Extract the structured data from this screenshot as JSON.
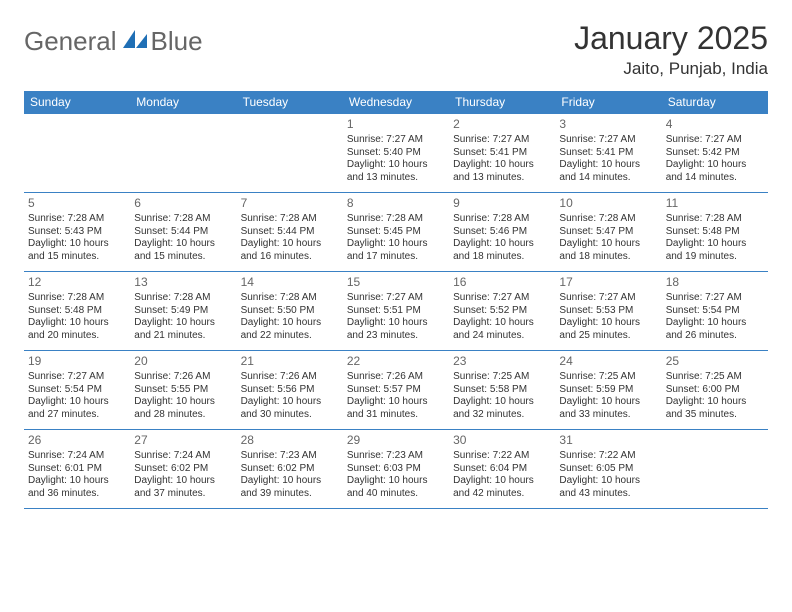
{
  "brand": {
    "word1": "General",
    "word2": "Blue"
  },
  "title": {
    "month": "January 2025",
    "location": "Jaito, Punjab, India"
  },
  "colors": {
    "header_bg": "#3a81c4",
    "header_text": "#ffffff",
    "border": "#3a81c4",
    "text": "#333333",
    "muted": "#666666",
    "logo_blue": "#1f6fb5"
  },
  "daynames": [
    "Sunday",
    "Monday",
    "Tuesday",
    "Wednesday",
    "Thursday",
    "Friday",
    "Saturday"
  ],
  "weeks": [
    [
      {
        "n": "",
        "sr": "",
        "ss": "",
        "dl": ""
      },
      {
        "n": "",
        "sr": "",
        "ss": "",
        "dl": ""
      },
      {
        "n": "",
        "sr": "",
        "ss": "",
        "dl": ""
      },
      {
        "n": "1",
        "sr": "Sunrise: 7:27 AM",
        "ss": "Sunset: 5:40 PM",
        "dl": "Daylight: 10 hours and 13 minutes."
      },
      {
        "n": "2",
        "sr": "Sunrise: 7:27 AM",
        "ss": "Sunset: 5:41 PM",
        "dl": "Daylight: 10 hours and 13 minutes."
      },
      {
        "n": "3",
        "sr": "Sunrise: 7:27 AM",
        "ss": "Sunset: 5:41 PM",
        "dl": "Daylight: 10 hours and 14 minutes."
      },
      {
        "n": "4",
        "sr": "Sunrise: 7:27 AM",
        "ss": "Sunset: 5:42 PM",
        "dl": "Daylight: 10 hours and 14 minutes."
      }
    ],
    [
      {
        "n": "5",
        "sr": "Sunrise: 7:28 AM",
        "ss": "Sunset: 5:43 PM",
        "dl": "Daylight: 10 hours and 15 minutes."
      },
      {
        "n": "6",
        "sr": "Sunrise: 7:28 AM",
        "ss": "Sunset: 5:44 PM",
        "dl": "Daylight: 10 hours and 15 minutes."
      },
      {
        "n": "7",
        "sr": "Sunrise: 7:28 AM",
        "ss": "Sunset: 5:44 PM",
        "dl": "Daylight: 10 hours and 16 minutes."
      },
      {
        "n": "8",
        "sr": "Sunrise: 7:28 AM",
        "ss": "Sunset: 5:45 PM",
        "dl": "Daylight: 10 hours and 17 minutes."
      },
      {
        "n": "9",
        "sr": "Sunrise: 7:28 AM",
        "ss": "Sunset: 5:46 PM",
        "dl": "Daylight: 10 hours and 18 minutes."
      },
      {
        "n": "10",
        "sr": "Sunrise: 7:28 AM",
        "ss": "Sunset: 5:47 PM",
        "dl": "Daylight: 10 hours and 18 minutes."
      },
      {
        "n": "11",
        "sr": "Sunrise: 7:28 AM",
        "ss": "Sunset: 5:48 PM",
        "dl": "Daylight: 10 hours and 19 minutes."
      }
    ],
    [
      {
        "n": "12",
        "sr": "Sunrise: 7:28 AM",
        "ss": "Sunset: 5:48 PM",
        "dl": "Daylight: 10 hours and 20 minutes."
      },
      {
        "n": "13",
        "sr": "Sunrise: 7:28 AM",
        "ss": "Sunset: 5:49 PM",
        "dl": "Daylight: 10 hours and 21 minutes."
      },
      {
        "n": "14",
        "sr": "Sunrise: 7:28 AM",
        "ss": "Sunset: 5:50 PM",
        "dl": "Daylight: 10 hours and 22 minutes."
      },
      {
        "n": "15",
        "sr": "Sunrise: 7:27 AM",
        "ss": "Sunset: 5:51 PM",
        "dl": "Daylight: 10 hours and 23 minutes."
      },
      {
        "n": "16",
        "sr": "Sunrise: 7:27 AM",
        "ss": "Sunset: 5:52 PM",
        "dl": "Daylight: 10 hours and 24 minutes."
      },
      {
        "n": "17",
        "sr": "Sunrise: 7:27 AM",
        "ss": "Sunset: 5:53 PM",
        "dl": "Daylight: 10 hours and 25 minutes."
      },
      {
        "n": "18",
        "sr": "Sunrise: 7:27 AM",
        "ss": "Sunset: 5:54 PM",
        "dl": "Daylight: 10 hours and 26 minutes."
      }
    ],
    [
      {
        "n": "19",
        "sr": "Sunrise: 7:27 AM",
        "ss": "Sunset: 5:54 PM",
        "dl": "Daylight: 10 hours and 27 minutes."
      },
      {
        "n": "20",
        "sr": "Sunrise: 7:26 AM",
        "ss": "Sunset: 5:55 PM",
        "dl": "Daylight: 10 hours and 28 minutes."
      },
      {
        "n": "21",
        "sr": "Sunrise: 7:26 AM",
        "ss": "Sunset: 5:56 PM",
        "dl": "Daylight: 10 hours and 30 minutes."
      },
      {
        "n": "22",
        "sr": "Sunrise: 7:26 AM",
        "ss": "Sunset: 5:57 PM",
        "dl": "Daylight: 10 hours and 31 minutes."
      },
      {
        "n": "23",
        "sr": "Sunrise: 7:25 AM",
        "ss": "Sunset: 5:58 PM",
        "dl": "Daylight: 10 hours and 32 minutes."
      },
      {
        "n": "24",
        "sr": "Sunrise: 7:25 AM",
        "ss": "Sunset: 5:59 PM",
        "dl": "Daylight: 10 hours and 33 minutes."
      },
      {
        "n": "25",
        "sr": "Sunrise: 7:25 AM",
        "ss": "Sunset: 6:00 PM",
        "dl": "Daylight: 10 hours and 35 minutes."
      }
    ],
    [
      {
        "n": "26",
        "sr": "Sunrise: 7:24 AM",
        "ss": "Sunset: 6:01 PM",
        "dl": "Daylight: 10 hours and 36 minutes."
      },
      {
        "n": "27",
        "sr": "Sunrise: 7:24 AM",
        "ss": "Sunset: 6:02 PM",
        "dl": "Daylight: 10 hours and 37 minutes."
      },
      {
        "n": "28",
        "sr": "Sunrise: 7:23 AM",
        "ss": "Sunset: 6:02 PM",
        "dl": "Daylight: 10 hours and 39 minutes."
      },
      {
        "n": "29",
        "sr": "Sunrise: 7:23 AM",
        "ss": "Sunset: 6:03 PM",
        "dl": "Daylight: 10 hours and 40 minutes."
      },
      {
        "n": "30",
        "sr": "Sunrise: 7:22 AM",
        "ss": "Sunset: 6:04 PM",
        "dl": "Daylight: 10 hours and 42 minutes."
      },
      {
        "n": "31",
        "sr": "Sunrise: 7:22 AM",
        "ss": "Sunset: 6:05 PM",
        "dl": "Daylight: 10 hours and 43 minutes."
      },
      {
        "n": "",
        "sr": "",
        "ss": "",
        "dl": ""
      }
    ]
  ]
}
